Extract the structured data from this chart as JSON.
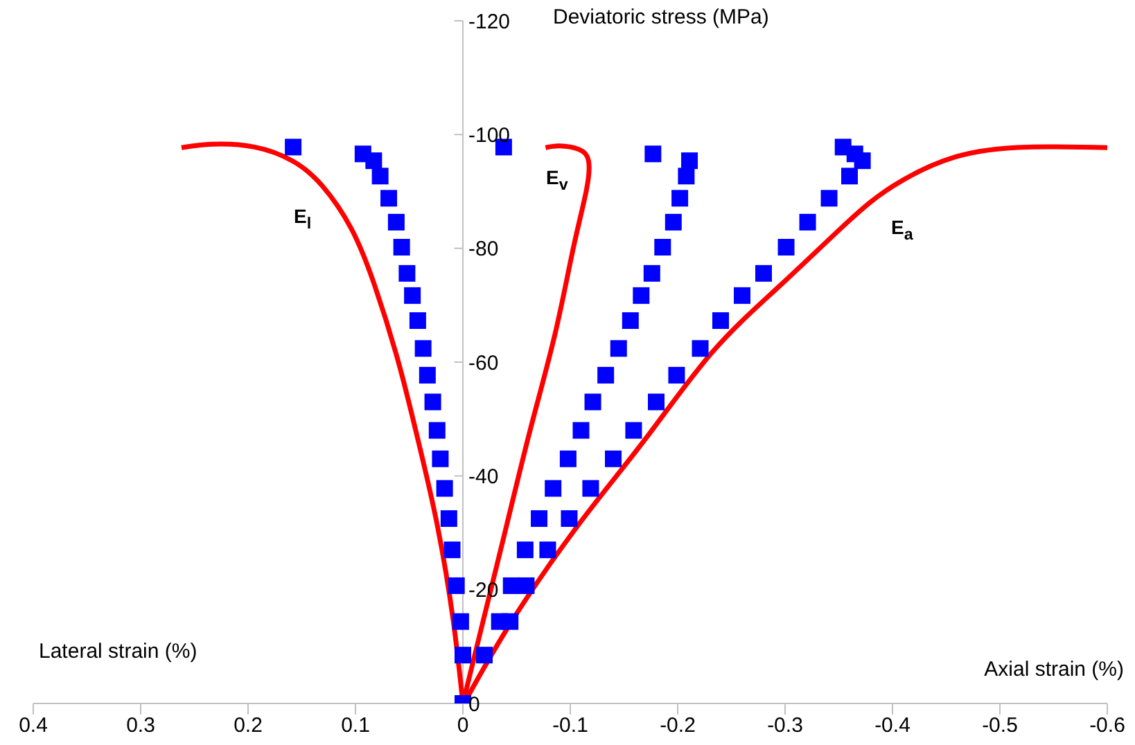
{
  "chart_data": {
    "type": "line",
    "xlabel": "Axial strain (%)",
    "ylabel": "Deviatoric stress (MPa)",
    "xlim": [
      0.4,
      -0.6
    ],
    "xticks": [
      0.4,
      0.3,
      0.2,
      0.1,
      0,
      -0.1,
      -0.2,
      -0.3,
      -0.4,
      -0.5,
      -0.6
    ],
    "ylim": [
      0,
      -120
    ],
    "yticks": [
      0,
      -20,
      -40,
      -60,
      -80,
      -100,
      -120
    ],
    "annotations": [
      "Lateral strain (%)",
      "E$_{l}$",
      "E$_{v}$",
      "E$_{a}$"
    ],
    "series": [
      {
        "color": "#ff0000",
        "x": [
          0,
          0.009,
          0.024,
          0.042,
          0.06,
          0.082,
          0.104,
          0.131,
          0.158,
          0.194,
          0.233,
          0.262
        ],
        "values": [
          0,
          -14.6,
          -31.5,
          -46.5,
          -60,
          -73.4,
          -83.5,
          -91,
          -95.3,
          -97.8,
          -98.3,
          -97.7
        ]
      },
      {
        "color": "#ff0000",
        "x": [
          0,
          -0.019,
          -0.041,
          -0.063,
          -0.086,
          -0.103,
          -0.115,
          -0.117,
          -0.108,
          -0.09,
          -0.077
        ],
        "values": [
          0,
          -14.6,
          -31.5,
          -48.3,
          -65.1,
          -80.2,
          -90.2,
          -95.4,
          -97.4,
          -98,
          -97.7
        ]
      },
      {
        "color": "#ff0000",
        "x": [
          -0.001,
          -0.046,
          -0.108,
          -0.17,
          -0.232,
          -0.295,
          -0.357,
          -0.401,
          -0.459,
          -0.526,
          -0.6
        ],
        "values": [
          0,
          -14.6,
          -31.5,
          -46.5,
          -61.7,
          -73.4,
          -84.4,
          -91,
          -96.1,
          -97.8,
          -97.7
        ]
      },
      {
        "type": "scatter",
        "color": "#0000ff",
        "marker": "square",
        "x": [
          0,
          0,
          0.002,
          0.006,
          0.01,
          0.013,
          0.017,
          0.021,
          0.024,
          0.028,
          0.033,
          0.037,
          0.042,
          0.047,
          0.052,
          0.057,
          0.062,
          0.069,
          0.077,
          0.083,
          0.093,
          0.158
        ],
        "values": [
          0,
          -8.5,
          -14.4,
          -20.7,
          -27,
          -32.5,
          -37.8,
          -43,
          -48,
          -53,
          -57.7,
          -62.4,
          -67.3,
          -71.7,
          -75.6,
          -80.2,
          -84.6,
          -88.8,
          -92.7,
          -95.4,
          -96.6,
          -97.8
        ]
      },
      {
        "type": "scatter",
        "color": "#0000ff",
        "marker": "square",
        "x": [
          -0.02,
          -0.034,
          -0.045,
          -0.058,
          -0.071,
          -0.084,
          -0.098,
          -0.11,
          -0.121,
          -0.133,
          -0.145,
          -0.156,
          -0.166,
          -0.176,
          -0.186,
          -0.196,
          -0.202,
          -0.208,
          -0.211,
          -0.177,
          -0.038
        ],
        "values": [
          -8.5,
          -14.4,
          -20.7,
          -27,
          -32.5,
          -37.8,
          -43,
          -48,
          -53,
          -57.7,
          -62.4,
          -67.3,
          -71.7,
          -75.6,
          -80.2,
          -84.6,
          -88.8,
          -92.7,
          -95.4,
          -96.6,
          -97.8
        ]
      },
      {
        "type": "scatter",
        "color": "#0000ff",
        "marker": "square",
        "x": [
          -0.044,
          -0.059,
          -0.079,
          -0.099,
          -0.119,
          -0.14,
          -0.159,
          -0.18,
          -0.199,
          -0.221,
          -0.24,
          -0.26,
          -0.28,
          -0.301,
          -0.321,
          -0.341,
          -0.36,
          -0.372,
          -0.365,
          -0.354
        ],
        "values": [
          -14.4,
          -20.7,
          -27,
          -32.5,
          -37.8,
          -43,
          -48,
          -53,
          -57.7,
          -62.4,
          -67.3,
          -71.7,
          -75.6,
          -80.2,
          -84.6,
          -88.8,
          -92.7,
          -95.4,
          -96.6,
          -97.8
        ]
      }
    ]
  }
}
